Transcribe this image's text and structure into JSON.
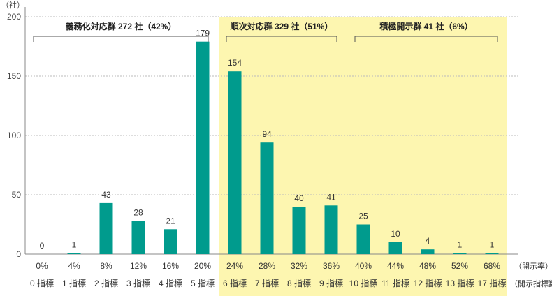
{
  "chart_data": {
    "type": "bar",
    "y_unit_label": "（社）",
    "ylim": [
      0,
      200
    ],
    "yticks": [
      0,
      50,
      100,
      150,
      200
    ],
    "x_axis_caption_rate": "（開示率）",
    "x_axis_caption_count": "（開示指標数）",
    "categories_rate": [
      "0%",
      "4%",
      "8%",
      "12%",
      "16%",
      "20%",
      "24%",
      "28%",
      "32%",
      "36%",
      "40%",
      "44%",
      "48%",
      "52%",
      "68%"
    ],
    "categories_count": [
      "0 指標",
      "1 指標",
      "2 指標",
      "3 指標",
      "4 指標",
      "5 指標",
      "6 指標",
      "7 指標",
      "8 指標",
      "9 指標",
      "10 指標",
      "11 指標",
      "12 指標",
      "13 指標",
      "17 指標"
    ],
    "values": [
      0,
      1,
      43,
      28,
      21,
      179,
      154,
      94,
      40,
      41,
      25,
      10,
      4,
      1,
      1
    ],
    "bar_color": "#009b8d",
    "highlight_color": "#fdf6b0",
    "highlight_from_index": 6,
    "groups": [
      {
        "label": "義務化対応群 272 社（42%）",
        "start_index": 0,
        "end_index": 5
      },
      {
        "label": "順次対応群 329 社（51%）",
        "start_index": 6,
        "end_index": 9
      },
      {
        "label": "積極開示群 41 社（6%）",
        "start_index": 10,
        "end_index": 14
      }
    ]
  }
}
